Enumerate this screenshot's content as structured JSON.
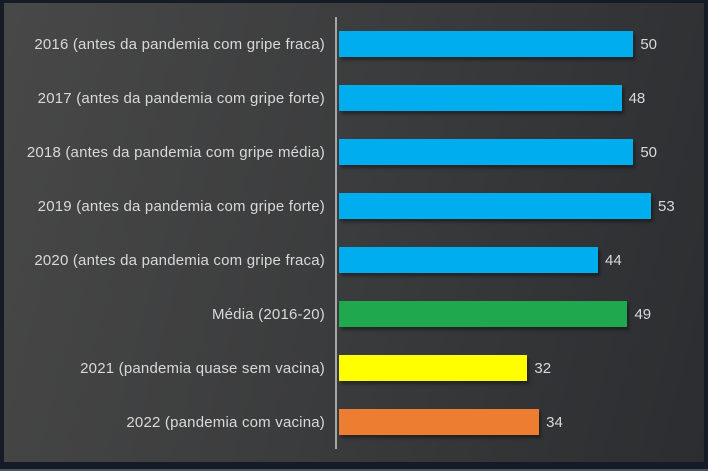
{
  "chart_data": {
    "type": "bar",
    "orientation": "horizontal",
    "title": "",
    "xlabel": "",
    "ylabel": "",
    "categories": [
      "2016 (antes da pandemia com gripe fraca)",
      "2017 (antes da pandemia com gripe forte)",
      "2018 (antes da pandemia com gripe média)",
      "2019 (antes da pandemia com gripe forte)",
      "2020 (antes da pandemia com gripe fraca)",
      "Média (2016-20)",
      "2021 (pandemia quase sem vacina)",
      "2022 (pandemia com vacina)"
    ],
    "values": [
      50,
      48,
      50,
      53,
      44,
      49,
      32,
      34
    ],
    "data_labels": [
      "50",
      "48",
      "50",
      "53",
      "44",
      "49",
      "32",
      "34"
    ],
    "bar_colors": [
      "#00AEEF",
      "#00AEEF",
      "#00AEEF",
      "#00AEEF",
      "#00AEEF",
      "#1FA84E",
      "#FFFF00",
      "#ED7D31"
    ],
    "xlim": [
      0,
      62
    ],
    "grid": false,
    "legend": null,
    "axis_line_color": "#A6A6A6",
    "label_color": "#D9D9D9",
    "colors": {
      "background_gradient_start": "#484848",
      "background_gradient_end": "#2B2D30",
      "frame_border": "#161C26",
      "frame_bottom_edge": "#4B5462"
    }
  }
}
